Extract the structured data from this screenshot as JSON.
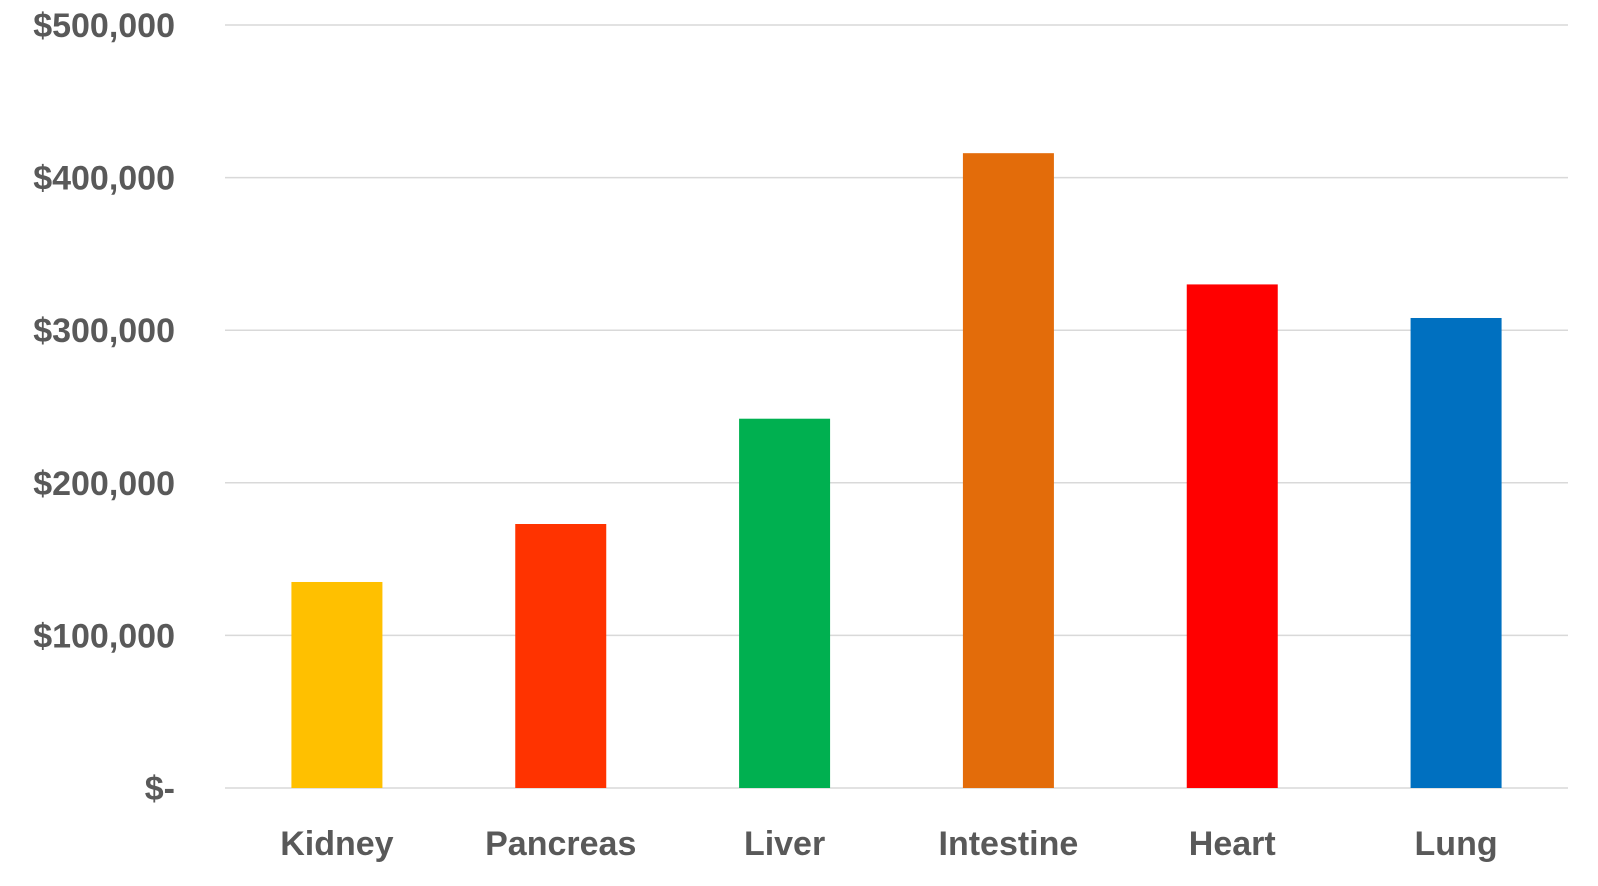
{
  "chart_data": {
    "type": "bar",
    "categories": [
      "Kidney",
      "Pancreas",
      "Liver",
      "Intestine",
      "Heart",
      "Lung"
    ],
    "values": [
      135000,
      173000,
      242000,
      416000,
      330000,
      308000
    ],
    "colors": [
      "#FFC000",
      "#FF3300",
      "#00B050",
      "#E36C0A",
      "#FF0000",
      "#0070C0"
    ],
    "title": "",
    "xlabel": "",
    "ylabel": "",
    "ylim": [
      0,
      500000
    ],
    "yticks": [
      0,
      100000,
      200000,
      300000,
      400000,
      500000
    ],
    "ytick_labels": [
      "$-",
      "$100,000",
      "$200,000",
      "$300,000",
      "$400,000",
      "$500,000"
    ],
    "grid": true,
    "grid_color": "#D9D9D9",
    "text_color": "#595959"
  }
}
